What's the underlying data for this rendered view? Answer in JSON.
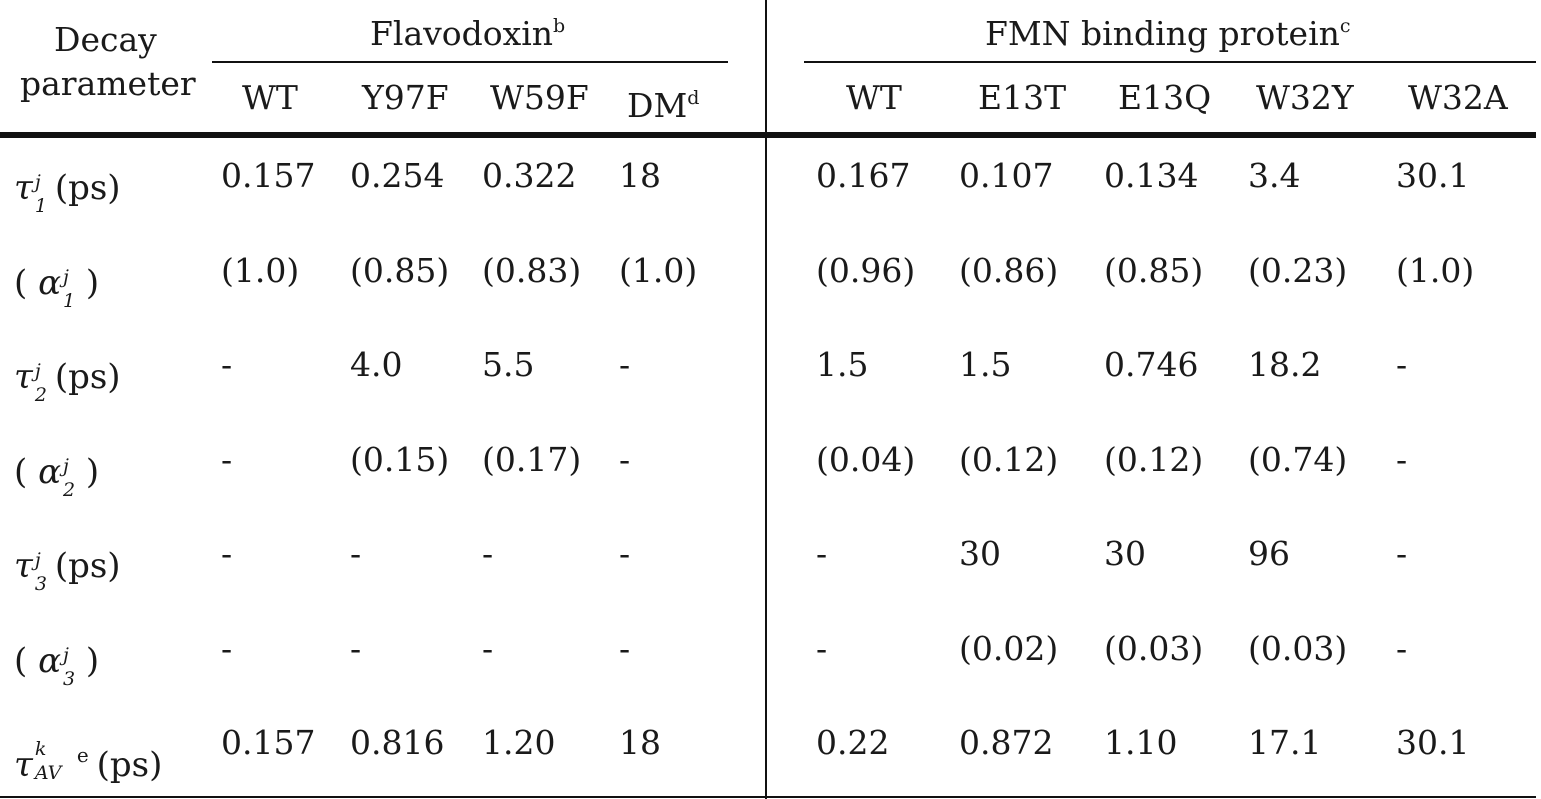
{
  "header": {
    "param_label_line1": "Decay",
    "param_label_line2": "parameter",
    "group1": {
      "title": "Flavodoxin",
      "title_sup": "b"
    },
    "group2": {
      "title": "FMN binding protein",
      "title_sup": "c"
    },
    "columns": [
      "WT",
      "Y97F",
      "W59F",
      "DM",
      "WT",
      "E13T",
      "E13Q",
      "W32Y",
      "W32A"
    ],
    "dm_sup": "d"
  },
  "rows": [
    {
      "sym": "τ",
      "idx": "1",
      "sup": "j",
      "unit": "(ps)",
      "paren": false,
      "values": [
        "0.157",
        "0.254",
        "0.322",
        "18",
        "0.167",
        "0.107",
        "0.134",
        "3.4",
        "30.1"
      ]
    },
    {
      "sym": "α",
      "idx": "1",
      "sup": "j",
      "unit": "",
      "paren": true,
      "values": [
        "(1.0)",
        "(0.85)",
        "(0.83)",
        "(1.0)",
        "(0.96)",
        "(0.86)",
        "(0.85)",
        "(0.23)",
        "(1.0)"
      ]
    },
    {
      "sym": "τ",
      "idx": "2",
      "sup": "j",
      "unit": "(ps)",
      "paren": false,
      "values": [
        "-",
        "4.0",
        "5.5",
        "-",
        "1.5",
        "1.5",
        "0.746",
        "18.2",
        "-"
      ]
    },
    {
      "sym": "α",
      "idx": "2",
      "sup": "j",
      "unit": "",
      "paren": true,
      "values": [
        "-",
        "(0.15)",
        "(0.17)",
        "-",
        "(0.04)",
        "(0.12)",
        "(0.12)",
        "(0.74)",
        "-"
      ]
    },
    {
      "sym": "τ",
      "idx": "3",
      "sup": "j",
      "unit": "(ps)",
      "paren": false,
      "values": [
        "-",
        "-",
        "-",
        "-",
        "-",
        "30",
        "30",
        "96",
        "-"
      ]
    },
    {
      "sym": "α",
      "idx": "3",
      "sup": "j",
      "unit": "",
      "paren": true,
      "values": [
        "-",
        "-",
        "-",
        "-",
        "-",
        "(0.02)",
        "(0.03)",
        "(0.03)",
        "-"
      ]
    },
    {
      "sym": "τ",
      "idx": "AV",
      "sup": "k",
      "unit": "(ps)",
      "paren": false,
      "note": "e",
      "values": [
        "0.157",
        "0.816",
        "1.20",
        "18",
        "0.22",
        "0.872",
        "1.10",
        "17.1",
        "30.1"
      ]
    }
  ]
}
